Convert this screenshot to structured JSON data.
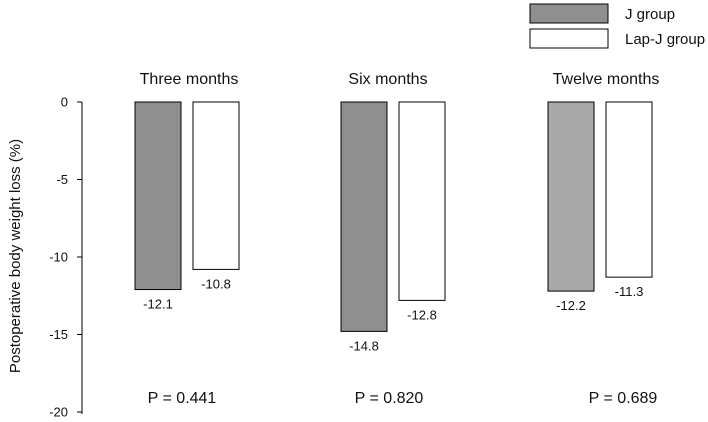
{
  "chart_data": {
    "type": "bar",
    "categories": [
      "Three months",
      "Six months",
      "Twelve months"
    ],
    "series": [
      {
        "name": "J group",
        "values": [
          -12.1,
          -14.8,
          -12.2
        ],
        "colors": [
          "#8f8f8f",
          "#8f8f8f",
          "#a8a8a8"
        ],
        "labels": [
          "-12.1",
          "-14.8",
          "-12.2"
        ]
      },
      {
        "name": "Lap-J group",
        "values": [
          -10.8,
          -12.8,
          -11.3
        ],
        "colors": [
          "#ffffff",
          "#ffffff",
          "#ffffff"
        ],
        "labels": [
          "-10.8",
          "-12.8",
          "-11.3"
        ]
      }
    ],
    "ylabel": "Postoperative body weight loss (%)",
    "ylim": [
      -20,
      0
    ],
    "yticks": [
      0,
      -5,
      -10,
      -15,
      -20
    ],
    "ytick_labels": [
      "0",
      "-5",
      "-10",
      "-15",
      "-20"
    ],
    "annotations": [
      "P = 0.441",
      "P = 0.820",
      "P = 0.689"
    ],
    "legend": "top-right",
    "grid": false
  }
}
